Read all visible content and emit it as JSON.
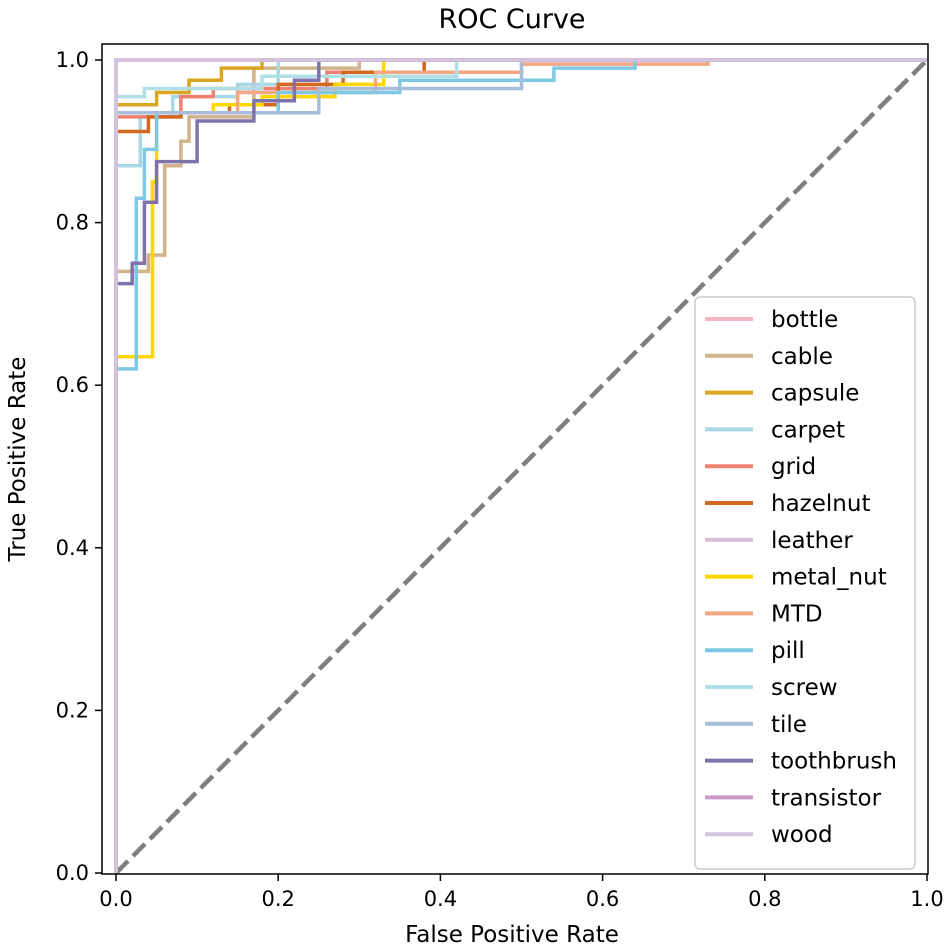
{
  "chart_data": {
    "type": "line",
    "title": "ROC Curve",
    "xlabel": "False Positive Rate",
    "ylabel": "True Positive Rate",
    "xlim": [
      0.0,
      1.0
    ],
    "ylim": [
      0.0,
      1.0
    ],
    "xticks": [
      "0.0",
      "0.2",
      "0.4",
      "0.6",
      "0.8",
      "1.0"
    ],
    "yticks": [
      "0.0",
      "0.2",
      "0.4",
      "0.6",
      "0.8",
      "1.0"
    ],
    "grid": false,
    "legend_position": "lower-right",
    "diagonal": {
      "x": [
        0,
        1
      ],
      "y": [
        0,
        1
      ],
      "style": "dashed",
      "color": "#7f7f7f"
    },
    "series": [
      {
        "name": "bottle",
        "color": "#f4b6c2",
        "x": [
          0,
          0,
          1
        ],
        "y": [
          0,
          1.0,
          1.0
        ]
      },
      {
        "name": "cable",
        "color": "#d2b48c",
        "x": [
          0,
          0,
          0.04,
          0.04,
          0.06,
          0.06,
          0.08,
          0.08,
          0.09,
          0.09,
          0.17,
          0.17,
          0.3,
          0.3,
          1
        ],
        "y": [
          0,
          0.74,
          0.74,
          0.76,
          0.76,
          0.87,
          0.87,
          0.9,
          0.9,
          0.93,
          0.93,
          0.99,
          0.99,
          1.0,
          1.0
        ]
      },
      {
        "name": "capsule",
        "color": "#daa520",
        "x": [
          0,
          0,
          0.05,
          0.05,
          0.09,
          0.09,
          0.13,
          0.13,
          0.18,
          0.18,
          1
        ],
        "y": [
          0,
          0.945,
          0.945,
          0.96,
          0.96,
          0.975,
          0.975,
          0.99,
          0.99,
          1.0,
          1.0
        ]
      },
      {
        "name": "carpet",
        "color": "#a8d8e8",
        "x": [
          0,
          0,
          0.03,
          0.03,
          0.07,
          0.07,
          0.15,
          0.15,
          0.2,
          0.2,
          1
        ],
        "y": [
          0,
          0.87,
          0.87,
          0.93,
          0.93,
          0.955,
          0.955,
          0.97,
          0.97,
          1.0,
          1.0
        ]
      },
      {
        "name": "grid",
        "color": "#f08070",
        "x": [
          0,
          0,
          0.08,
          0.08,
          0.12,
          0.12,
          0.26,
          0.26,
          0.38,
          0.38,
          1
        ],
        "y": [
          0,
          0.93,
          0.93,
          0.955,
          0.955,
          0.965,
          0.965,
          0.985,
          0.985,
          1.0,
          1.0
        ]
      },
      {
        "name": "hazelnut",
        "color": "#d2691e",
        "x": [
          0,
          0,
          0.04,
          0.04,
          0.08,
          0.08,
          0.14,
          0.14,
          0.2,
          0.2,
          0.28,
          0.28,
          0.38,
          0.38,
          1
        ],
        "y": [
          0,
          0.912,
          0.912,
          0.93,
          0.93,
          0.935,
          0.935,
          0.945,
          0.945,
          0.97,
          0.97,
          0.985,
          0.985,
          1.0,
          1.0
        ]
      },
      {
        "name": "leather",
        "color": "#d8bfd8",
        "x": [
          0,
          0,
          1
        ],
        "y": [
          0,
          1.0,
          1.0
        ]
      },
      {
        "name": "metal_nut",
        "color": "#ffd700",
        "x": [
          0,
          0,
          0.045,
          0.045,
          0.05,
          0.05,
          0.12,
          0.12,
          0.18,
          0.18,
          0.27,
          0.27,
          0.33,
          0.33,
          1
        ],
        "y": [
          0,
          0.635,
          0.635,
          0.85,
          0.85,
          0.935,
          0.935,
          0.945,
          0.945,
          0.955,
          0.955,
          0.97,
          0.97,
          1.0,
          1.0
        ]
      },
      {
        "name": "MTD",
        "color": "#f4a582",
        "x": [
          0,
          0,
          0.15,
          0.15,
          0.32,
          0.32,
          0.5,
          0.5,
          0.73,
          0.73,
          1
        ],
        "y": [
          0,
          0.935,
          0.935,
          0.96,
          0.96,
          0.985,
          0.985,
          0.995,
          0.995,
          1.0,
          1.0
        ]
      },
      {
        "name": "pill",
        "color": "#7ec8e3",
        "x": [
          0,
          0,
          0.025,
          0.025,
          0.035,
          0.035,
          0.05,
          0.05,
          0.2,
          0.2,
          0.35,
          0.35,
          0.54,
          0.54,
          0.64,
          0.64,
          1
        ],
        "y": [
          0,
          0.62,
          0.62,
          0.83,
          0.83,
          0.89,
          0.89,
          0.935,
          0.935,
          0.96,
          0.96,
          0.975,
          0.975,
          0.99,
          0.99,
          1.0,
          1.0
        ]
      },
      {
        "name": "screw",
        "color": "#b0e0e6",
        "x": [
          0,
          0,
          0.035,
          0.035,
          0.18,
          0.18,
          0.42,
          0.42,
          1
        ],
        "y": [
          0,
          0.955,
          0.955,
          0.965,
          0.965,
          0.98,
          0.98,
          1.0,
          1.0
        ]
      },
      {
        "name": "tile",
        "color": "#a6bddb",
        "x": [
          0,
          0,
          0.25,
          0.25,
          0.5,
          0.5,
          1
        ],
        "y": [
          0,
          0.935,
          0.935,
          0.965,
          0.965,
          1.0,
          1.0
        ]
      },
      {
        "name": "toothbrush",
        "color": "#8073ac",
        "x": [
          0,
          0,
          0.02,
          0.02,
          0.035,
          0.035,
          0.05,
          0.05,
          0.1,
          0.1,
          0.17,
          0.17,
          0.22,
          0.22,
          0.25,
          0.25,
          1
        ],
        "y": [
          0,
          0.725,
          0.725,
          0.75,
          0.75,
          0.825,
          0.825,
          0.875,
          0.875,
          0.925,
          0.925,
          0.95,
          0.95,
          0.975,
          0.975,
          1.0,
          1.0
        ]
      },
      {
        "name": "transistor",
        "color": "#cc99c9",
        "x": [
          0,
          0,
          1
        ],
        "y": [
          0,
          1.0,
          1.0
        ]
      },
      {
        "name": "wood",
        "color": "#d5c4dd",
        "x": [
          0,
          0,
          1
        ],
        "y": [
          0,
          1.0,
          1.0
        ]
      }
    ]
  }
}
